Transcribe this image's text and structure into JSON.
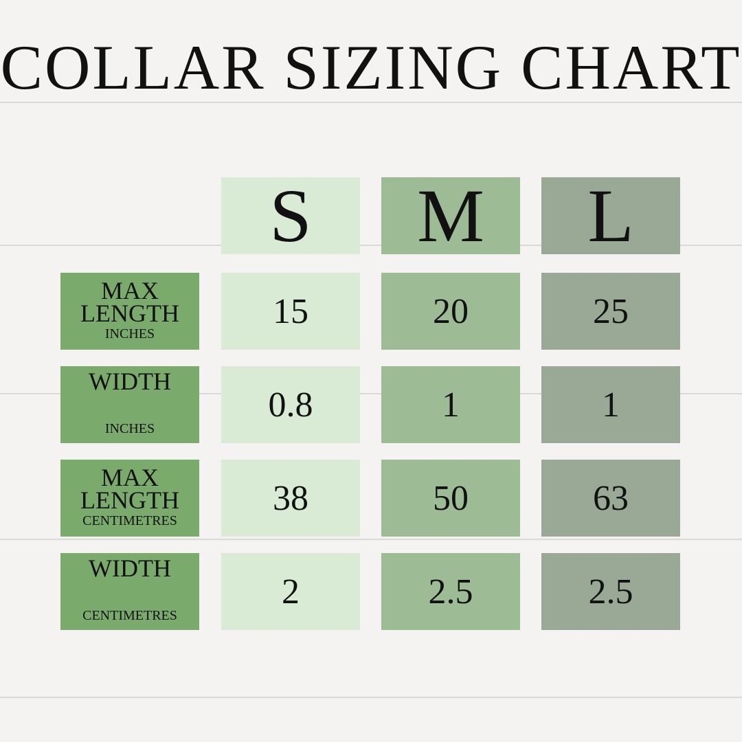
{
  "title": "COLLAR SIZING CHART",
  "colors": {
    "S": "#d9ebd5",
    "M": "#9dbb94",
    "L": "#9aa896",
    "row_label": "#7aab6c"
  },
  "chart_data": {
    "type": "table",
    "title": "COLLAR SIZING CHART",
    "columns": [
      "S",
      "M",
      "L"
    ],
    "rows": [
      {
        "label": "MAX LENGTH",
        "unit": "INCHES",
        "values": [
          "15",
          "20",
          "25"
        ]
      },
      {
        "label": "WIDTH",
        "unit": "INCHES",
        "values": [
          "0.8",
          "1",
          "1"
        ]
      },
      {
        "label": "MAX LENGTH",
        "unit": "CENTIMETRES",
        "values": [
          "38",
          "50",
          "63"
        ]
      },
      {
        "label": "WIDTH",
        "unit": "CENTIMETRES",
        "values": [
          "2",
          "2.5",
          "2.5"
        ]
      }
    ]
  }
}
